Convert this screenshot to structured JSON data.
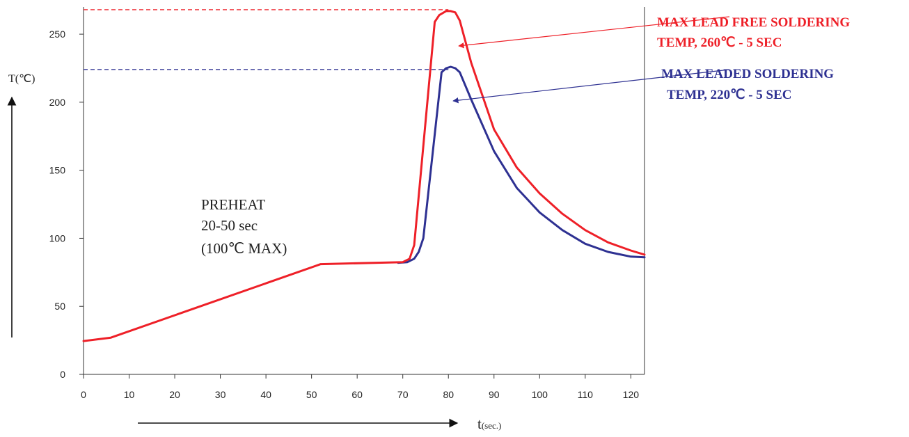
{
  "chart_data": {
    "type": "line",
    "title": "",
    "xlabel": "t",
    "xlabel_unit": "(sec.)",
    "ylabel": "T(℃)",
    "xlim": [
      0,
      123
    ],
    "ylim": [
      0,
      270
    ],
    "xticks": [
      0,
      10,
      20,
      30,
      40,
      50,
      60,
      70,
      80,
      90,
      100,
      110,
      120
    ],
    "yticks": [
      0,
      50,
      100,
      150,
      200,
      250
    ],
    "grid": false,
    "colors": {
      "lead_free": "#ee2028",
      "leaded": "#2e3192"
    },
    "series": [
      {
        "key": "lead_free",
        "points": [
          [
            0,
            24.5
          ],
          [
            6,
            27
          ],
          [
            52,
            81
          ],
          [
            70,
            82.5
          ],
          [
            71.5,
            85
          ],
          [
            72.5,
            95
          ],
          [
            77,
            259
          ],
          [
            78,
            264
          ],
          [
            79.5,
            267
          ],
          [
            80.5,
            267
          ],
          [
            81.5,
            266
          ],
          [
            82.5,
            260
          ],
          [
            85,
            229
          ],
          [
            90,
            180
          ],
          [
            95,
            152
          ],
          [
            100,
            133
          ],
          [
            105,
            118
          ],
          [
            110,
            106
          ],
          [
            115,
            97
          ],
          [
            120,
            91
          ],
          [
            123,
            88
          ]
        ]
      },
      {
        "key": "leaded",
        "points": [
          [
            69,
            82
          ],
          [
            71,
            82.5
          ],
          [
            72.5,
            85
          ],
          [
            73.5,
            90
          ],
          [
            74.5,
            100
          ],
          [
            78.5,
            222
          ],
          [
            79.5,
            225
          ],
          [
            80.5,
            226
          ],
          [
            81.5,
            225
          ],
          [
            82.5,
            222
          ],
          [
            85,
            202
          ],
          [
            90,
            164
          ],
          [
            95,
            137
          ],
          [
            100,
            119
          ],
          [
            105,
            106
          ],
          [
            110,
            96
          ],
          [
            115,
            90
          ],
          [
            120,
            86.5
          ],
          [
            123,
            86
          ]
        ]
      }
    ],
    "reference_lines": [
      {
        "key": "lead_free",
        "y": 268
      },
      {
        "key": "leaded",
        "y": 224
      }
    ],
    "annotations": {
      "lead_free_line1": "MAX LEAD FREE SOLDERING",
      "lead_free_line2": "TEMP, 260℃ - 5 SEC",
      "leaded_line1": "MAX LEADED SOLDERING",
      "leaded_line2": "TEMP, 220℃ - 5 SEC",
      "preheat_line1": "PREHEAT",
      "preheat_line2": "20-50 sec",
      "preheat_line3": "(100℃ MAX)"
    }
  }
}
